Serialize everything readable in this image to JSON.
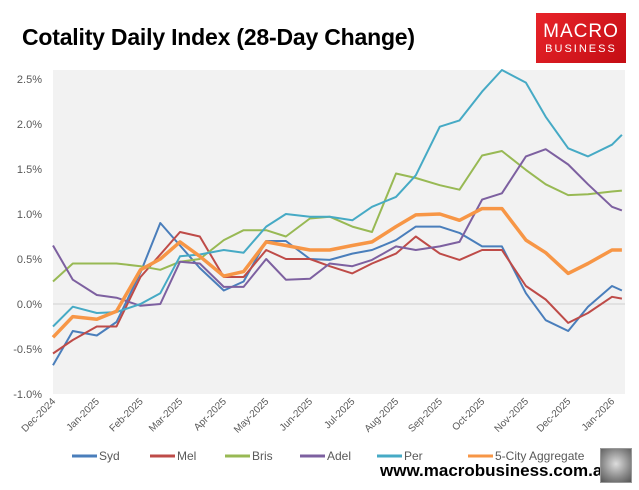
{
  "title": "Cotality Daily Index (28-Day Change)",
  "brand": {
    "logo_line1": "MACRO",
    "logo_line2": "BUSINESS",
    "url": "www.macrobusiness.com.au",
    "logo_color": "#e01b22"
  },
  "chart_data": {
    "type": "line",
    "title": "Cotality Daily Index (28-Day Change)",
    "ylim": [
      -1.0,
      2.6
    ],
    "yticks": [
      "-1.0%",
      "-0.5%",
      "0.0%",
      "0.5%",
      "1.0%",
      "1.5%",
      "2.0%",
      "2.5%"
    ],
    "ytick_values": [
      -1.0,
      -0.5,
      0.0,
      0.5,
      1.0,
      1.5,
      2.0,
      2.5
    ],
    "xticks": [
      "Dec-2024",
      "Jan-2025",
      "Feb-2025",
      "Mar-2025",
      "Apr-2025",
      "May-2025",
      "Jun-2025",
      "Jul-2025",
      "Aug-2025",
      "Sep-2025",
      "Oct-2025",
      "Nov-2025",
      "Dec-2025",
      "Jan-2026"
    ],
    "xtick_dates": [
      "2024-12-01",
      "2025-01-01",
      "2025-02-01",
      "2025-03-01",
      "2025-04-01",
      "2025-05-01",
      "2025-06-01",
      "2025-07-01",
      "2025-08-01",
      "2025-09-01",
      "2025-10-01",
      "2025-11-01",
      "2025-12-01",
      "2026-01-01"
    ],
    "legend_position": "bottom",
    "grid": false,
    "x": [
      "2024-12-01",
      "2024-12-15",
      "2025-01-01",
      "2025-01-15",
      "2025-02-01",
      "2025-02-15",
      "2025-03-01",
      "2025-03-15",
      "2025-04-01",
      "2025-04-15",
      "2025-05-01",
      "2025-05-15",
      "2025-06-01",
      "2025-06-15",
      "2025-07-01",
      "2025-07-15",
      "2025-08-01",
      "2025-08-15",
      "2025-09-01",
      "2025-09-15",
      "2025-10-01",
      "2025-10-15",
      "2025-11-01",
      "2025-11-15",
      "2025-12-01",
      "2025-12-15",
      "2026-01-01",
      "2026-01-08"
    ],
    "series": [
      {
        "name": "Syd",
        "color": "#4a7ebb",
        "values": [
          -0.68,
          -0.3,
          -0.35,
          -0.2,
          0.35,
          0.9,
          0.65,
          0.4,
          0.15,
          0.25,
          0.7,
          0.7,
          0.5,
          0.49,
          0.56,
          0.6,
          0.71,
          0.86,
          0.86,
          0.79,
          0.64,
          0.64,
          0.12,
          -0.18,
          -0.3,
          -0.03,
          0.2,
          0.15
        ]
      },
      {
        "name": "Mel",
        "color": "#be4b48",
        "values": [
          -0.55,
          -0.4,
          -0.25,
          -0.25,
          0.3,
          0.55,
          0.8,
          0.75,
          0.3,
          0.3,
          0.6,
          0.5,
          0.5,
          0.42,
          0.34,
          0.45,
          0.56,
          0.75,
          0.56,
          0.49,
          0.6,
          0.6,
          0.2,
          0.05,
          -0.21,
          -0.1,
          0.08,
          0.06
        ]
      },
      {
        "name": "Bris",
        "color": "#98b954",
        "values": [
          0.25,
          0.45,
          0.45,
          0.45,
          0.42,
          0.38,
          0.47,
          0.5,
          0.71,
          0.82,
          0.82,
          0.75,
          0.95,
          0.97,
          0.86,
          0.8,
          1.45,
          1.4,
          1.32,
          1.27,
          1.65,
          1.7,
          1.49,
          1.33,
          1.21,
          1.22,
          1.25,
          1.26
        ]
      },
      {
        "name": "Adel",
        "color": "#7d60a0",
        "values": [
          0.65,
          0.27,
          0.1,
          0.07,
          -0.02,
          0.0,
          0.47,
          0.45,
          0.19,
          0.19,
          0.5,
          0.27,
          0.28,
          0.45,
          0.42,
          0.49,
          0.64,
          0.6,
          0.64,
          0.69,
          1.16,
          1.23,
          1.64,
          1.72,
          1.55,
          1.33,
          1.08,
          1.04
        ]
      },
      {
        "name": "Per",
        "color": "#46aac5",
        "values": [
          -0.25,
          -0.03,
          -0.1,
          -0.09,
          0.0,
          0.12,
          0.53,
          0.55,
          0.6,
          0.57,
          0.86,
          1.0,
          0.97,
          0.97,
          0.93,
          1.08,
          1.19,
          1.43,
          1.97,
          2.04,
          2.36,
          2.6,
          2.46,
          2.08,
          1.73,
          1.64,
          1.77,
          1.88
        ]
      },
      {
        "name": "5-City Aggregate",
        "color": "#f79646",
        "values": [
          -0.37,
          -0.14,
          -0.17,
          -0.08,
          0.38,
          0.5,
          0.69,
          0.53,
          0.31,
          0.36,
          0.69,
          0.65,
          0.6,
          0.6,
          0.65,
          0.69,
          0.86,
          0.99,
          1.0,
          0.93,
          1.06,
          1.06,
          0.71,
          0.57,
          0.34,
          0.45,
          0.6,
          0.6
        ]
      }
    ]
  }
}
